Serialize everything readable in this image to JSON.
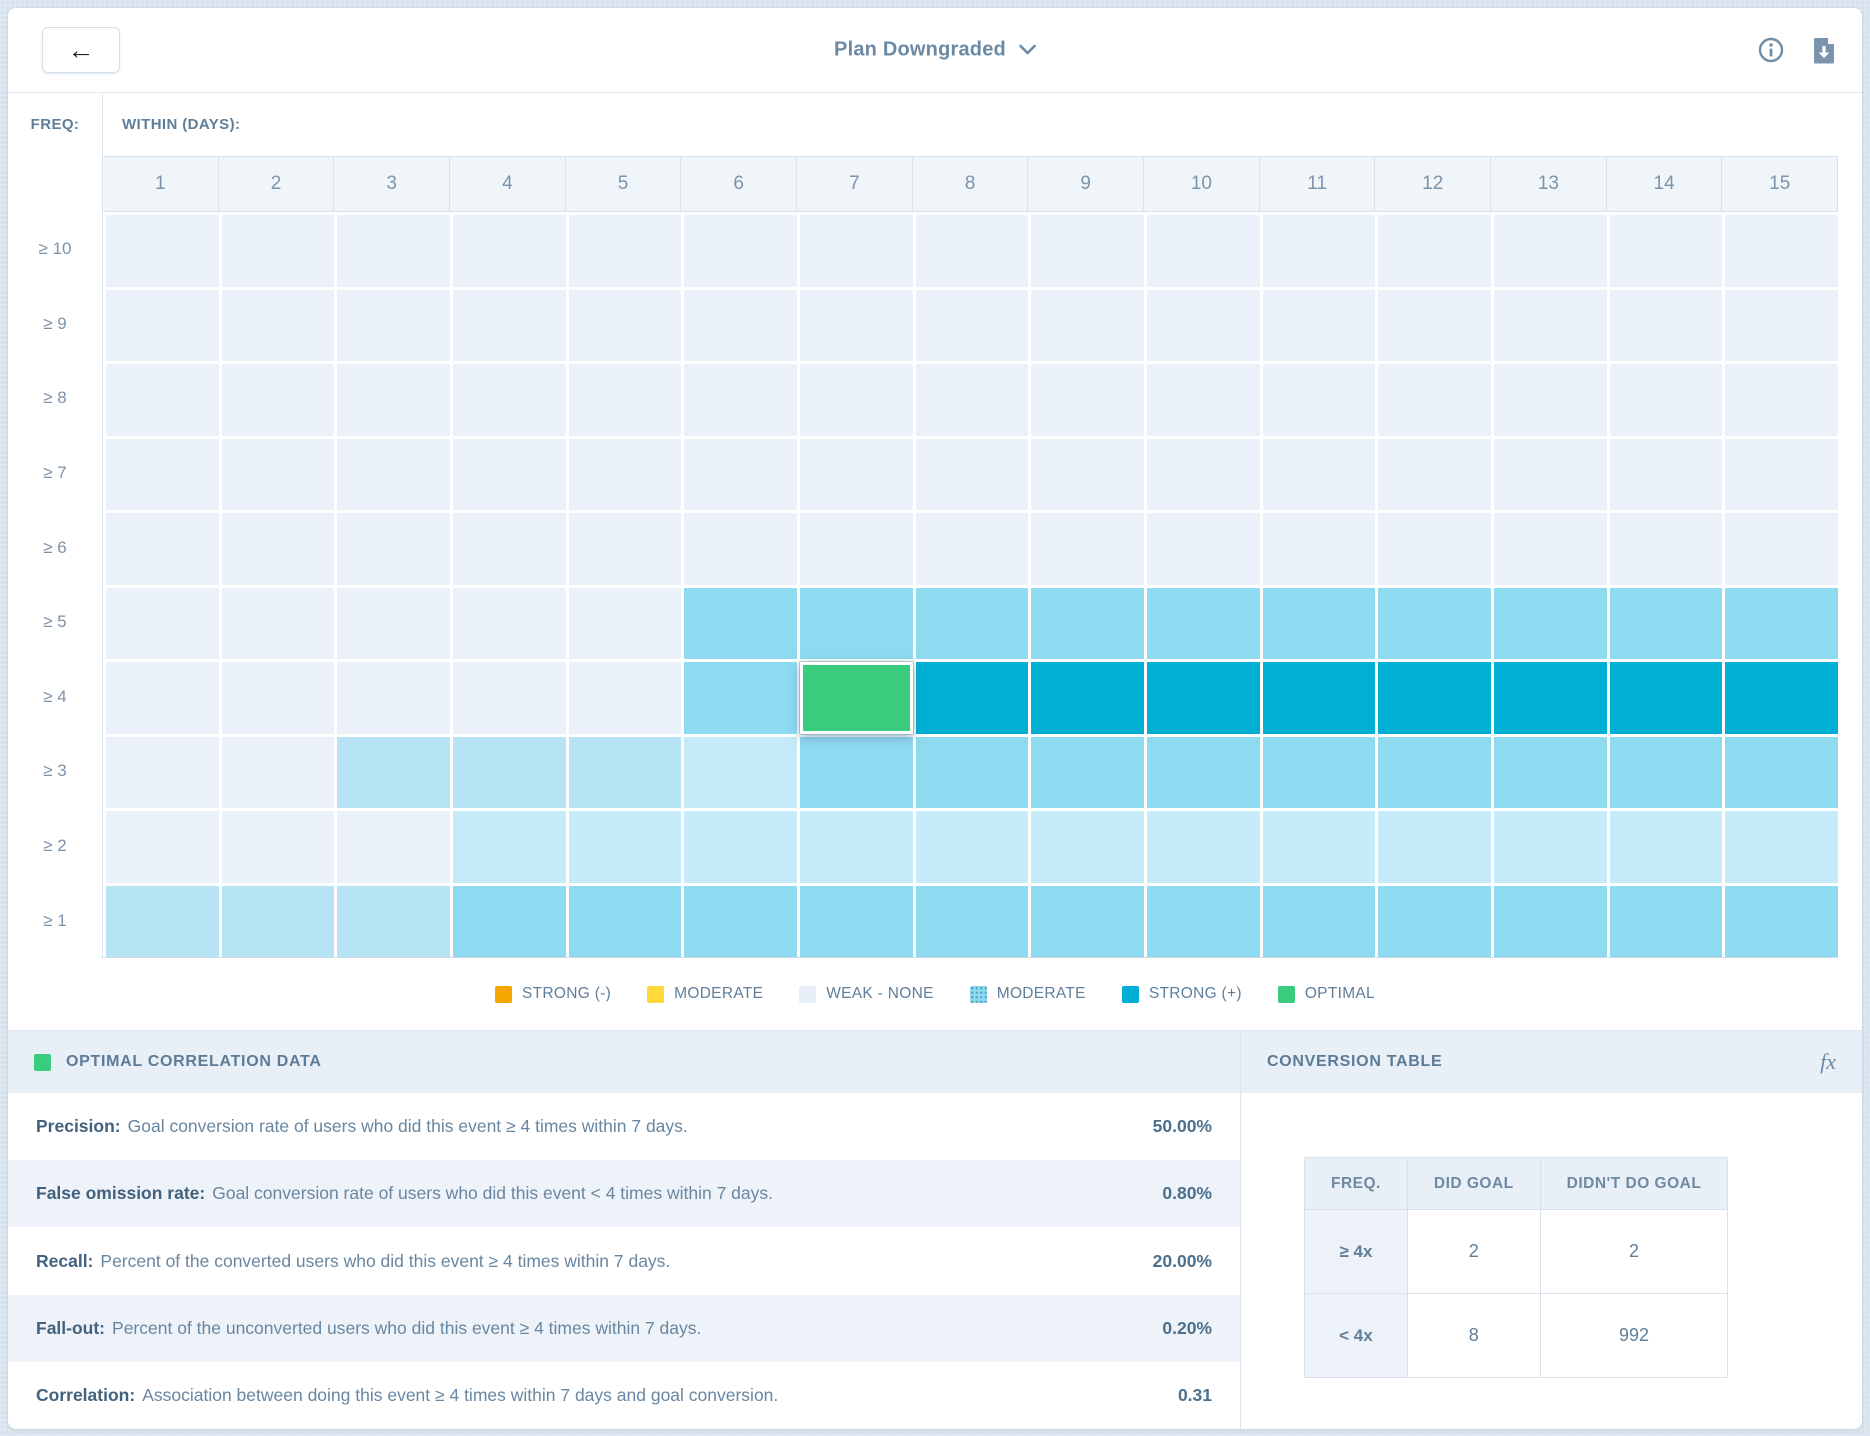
{
  "header": {
    "title": "Plan Downgraded"
  },
  "grid": {
    "freq_label": "FREQ:",
    "within_label": "WITHIN (DAYS):",
    "col_headers": [
      "1",
      "2",
      "3",
      "4",
      "5",
      "6",
      "7",
      "8",
      "9",
      "10",
      "11",
      "12",
      "13",
      "14",
      "15"
    ],
    "rows": [
      {
        "label": "≥ 10",
        "cells": [
          "weak",
          "weak",
          "weak",
          "weak",
          "weak",
          "weak",
          "weak",
          "weak",
          "weak",
          "weak",
          "weak",
          "weak",
          "weak",
          "weak",
          "weak"
        ]
      },
      {
        "label": "≥ 9",
        "cells": [
          "weak",
          "weak",
          "weak",
          "weak",
          "weak",
          "weak",
          "weak",
          "weak",
          "weak",
          "weak",
          "weak",
          "weak",
          "weak",
          "weak",
          "weak"
        ]
      },
      {
        "label": "≥ 8",
        "cells": [
          "weak",
          "weak",
          "weak",
          "weak",
          "weak",
          "weak",
          "weak",
          "weak",
          "weak",
          "weak",
          "weak",
          "weak",
          "weak",
          "weak",
          "weak"
        ]
      },
      {
        "label": "≥ 7",
        "cells": [
          "weak",
          "weak",
          "weak",
          "weak",
          "weak",
          "weak",
          "weak",
          "weak",
          "weak",
          "weak",
          "weak",
          "weak",
          "weak",
          "weak",
          "weak"
        ]
      },
      {
        "label": "≥ 6",
        "cells": [
          "weak",
          "weak",
          "weak",
          "weak",
          "weak",
          "weak",
          "weak",
          "weak",
          "weak",
          "weak",
          "weak",
          "weak",
          "weak",
          "weak",
          "weak"
        ]
      },
      {
        "label": "≥ 5",
        "cells": [
          "weak",
          "weak",
          "weak",
          "weak",
          "weak",
          "moderate",
          "moderate",
          "moderate",
          "moderate",
          "moderate",
          "moderate",
          "moderate",
          "moderate",
          "moderate",
          "moderate"
        ]
      },
      {
        "label": "≥ 4",
        "cells": [
          "weak",
          "weak",
          "weak",
          "weak",
          "weak",
          "moderate",
          "optimal",
          "strong",
          "strong",
          "strong",
          "strong",
          "strong",
          "strong",
          "strong",
          "strong"
        ]
      },
      {
        "label": "≥ 3",
        "cells": [
          "weak",
          "weak",
          "pale1",
          "pale1",
          "pale1",
          "pale2",
          "moderate",
          "moderate",
          "moderate",
          "moderate",
          "moderate",
          "moderate",
          "moderate",
          "moderate",
          "moderate"
        ]
      },
      {
        "label": "≥ 2",
        "cells": [
          "weak",
          "weak",
          "weak",
          "pale2",
          "pale2",
          "pale2",
          "pale2",
          "pale2",
          "pale2",
          "pale2",
          "pale2",
          "pale2",
          "pale2",
          "pale2",
          "pale2"
        ]
      },
      {
        "label": "≥ 1",
        "cells": [
          "pale1",
          "pale1",
          "pale1",
          "moderate",
          "moderate",
          "moderate",
          "moderate",
          "moderate",
          "moderate",
          "moderate",
          "moderate",
          "moderate",
          "moderate",
          "moderate",
          "moderate"
        ]
      }
    ],
    "selected_cell": {
      "freq": "≥ 4",
      "within_days": "7"
    }
  },
  "colors": {
    "weak": "#eaf1f8",
    "pale1": "#b7e4f5",
    "pale2": "#c6eaf8",
    "moderate": "#8edaf0",
    "strong": "#00afd4",
    "optimal": "#3acc7e"
  },
  "legend": {
    "items": [
      {
        "label": "STRONG (-)",
        "color": "#f5a700",
        "dotted": false
      },
      {
        "label": "MODERATE",
        "color": "#ffd937",
        "dotted": false
      },
      {
        "label": "WEAK - NONE",
        "color": "#e8eff7",
        "dotted": false
      },
      {
        "label": "MODERATE",
        "color": "#8edaf0",
        "dotted": true
      },
      {
        "label": "STRONG (+)",
        "color": "#00aed5",
        "dotted": false
      },
      {
        "label": "OPTIMAL",
        "color": "#3acc7e",
        "dotted": false
      }
    ]
  },
  "panels": {
    "optimal": {
      "title": "OPTIMAL CORRELATION DATA",
      "swatch_color": "#3acc7e",
      "stats": [
        {
          "term": "Precision:",
          "desc": "Goal conversion rate of users who did this event ≥ 4 times within 7 days.",
          "value": "50.00%"
        },
        {
          "term": "False omission rate:",
          "desc": "Goal conversion rate of users who did this event < 4 times within 7 days.",
          "value": "0.80%"
        },
        {
          "term": "Recall:",
          "desc": "Percent of the converted users who did this event ≥ 4 times within 7 days.",
          "value": "20.00%"
        },
        {
          "term": "Fall-out:",
          "desc": "Percent of the unconverted users who did this event ≥ 4 times within 7 days.",
          "value": "0.20%"
        },
        {
          "term": "Correlation:",
          "desc": "Association between doing this event ≥ 4 times within 7 days and goal conversion.",
          "value": "0.31"
        }
      ]
    },
    "conversion": {
      "title": "CONVERSION TABLE",
      "fx_label": "fx",
      "table": {
        "headers": [
          "FREQ.",
          "DID GOAL",
          "DIDN'T DO GOAL"
        ],
        "rows": [
          [
            "≥ 4x",
            "2",
            "2"
          ],
          [
            "< 4x",
            "8",
            "992"
          ]
        ]
      }
    }
  },
  "icons": {
    "back": "←",
    "title_dropdown": "chevron-down",
    "info": "info-circle",
    "export": "file-download",
    "formula": "fx"
  }
}
